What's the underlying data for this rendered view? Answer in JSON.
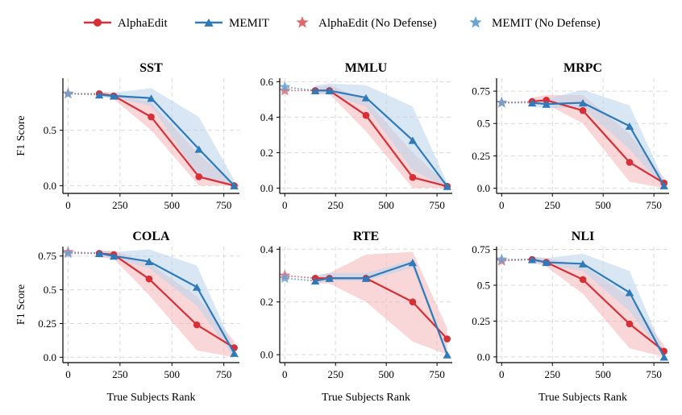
{
  "legend": [
    {
      "label": "AlphaEdit",
      "series": "alpha",
      "kind": "line-circle"
    },
    {
      "label": "MEMIT",
      "series": "memit",
      "kind": "line-triangle"
    },
    {
      "label": "AlphaEdit (No Defense)",
      "series": "alpha",
      "kind": "star"
    },
    {
      "label": "MEMIT (No Defense)",
      "series": "memit",
      "kind": "star"
    }
  ],
  "colors": {
    "alpha": "#d62f36",
    "memit": "#2f7ab8",
    "alpha_band": "#f4b6ba",
    "memit_band": "#b9d3ec",
    "alpha_star": "#e0686d",
    "memit_star": "#6ba3d3"
  },
  "chart_data": [
    {
      "type": "line",
      "title": "SST",
      "ylabel": "F1 Score",
      "xlabel": "",
      "xlim": [
        -25,
        825
      ],
      "ylim": [
        -0.07,
        0.97
      ],
      "xticks": [
        0,
        250,
        500,
        750
      ],
      "yticks": [
        0.0,
        0.5
      ],
      "x": [
        150,
        220,
        400,
        630,
        800
      ],
      "series": [
        {
          "name": "AlphaEdit",
          "values": [
            0.83,
            0.81,
            0.62,
            0.08,
            0.0
          ],
          "band_low": [
            0.81,
            0.78,
            0.5,
            0.0,
            0.0
          ],
          "band_high": [
            0.85,
            0.84,
            0.75,
            0.28,
            0.02
          ]
        },
        {
          "name": "MEMIT",
          "values": [
            0.82,
            0.81,
            0.79,
            0.33,
            0.0
          ],
          "band_low": [
            0.8,
            0.79,
            0.72,
            0.08,
            0.0
          ],
          "band_high": [
            0.84,
            0.84,
            0.88,
            0.62,
            0.05
          ]
        }
      ],
      "no_defense": {
        "x": 0,
        "alpha": 0.83,
        "memit": 0.83
      }
    },
    {
      "type": "line",
      "title": "MMLU",
      "ylabel": "",
      "xlabel": "",
      "xlim": [
        -25,
        825
      ],
      "ylim": [
        -0.03,
        0.62
      ],
      "xticks": [
        0,
        250,
        500,
        750
      ],
      "yticks": [
        0.0,
        0.2,
        0.4,
        0.6
      ],
      "x": [
        150,
        220,
        400,
        630,
        800
      ],
      "series": [
        {
          "name": "AlphaEdit",
          "values": [
            0.55,
            0.55,
            0.41,
            0.06,
            0.01
          ],
          "band_low": [
            0.53,
            0.53,
            0.32,
            0.0,
            0.0
          ],
          "band_high": [
            0.57,
            0.58,
            0.5,
            0.2,
            0.02
          ]
        },
        {
          "name": "MEMIT",
          "values": [
            0.55,
            0.55,
            0.51,
            0.27,
            0.01
          ],
          "band_low": [
            0.53,
            0.53,
            0.46,
            0.1,
            0.0
          ],
          "band_high": [
            0.58,
            0.59,
            0.58,
            0.46,
            0.03
          ]
        }
      ],
      "no_defense": {
        "x": 0,
        "alpha": 0.55,
        "memit": 0.57
      }
    },
    {
      "type": "line",
      "title": "MRPC",
      "ylabel": "",
      "xlabel": "",
      "xlim": [
        -25,
        825
      ],
      "ylim": [
        -0.04,
        0.85
      ],
      "xticks": [
        0,
        250,
        500,
        750
      ],
      "yticks": [
        0.0,
        0.25,
        0.5,
        0.75
      ],
      "x": [
        150,
        220,
        400,
        630,
        800
      ],
      "series": [
        {
          "name": "AlphaEdit",
          "values": [
            0.67,
            0.68,
            0.6,
            0.2,
            0.04
          ],
          "band_low": [
            0.64,
            0.65,
            0.5,
            0.05,
            0.0
          ],
          "band_high": [
            0.7,
            0.72,
            0.72,
            0.42,
            0.08
          ]
        },
        {
          "name": "MEMIT",
          "values": [
            0.66,
            0.65,
            0.66,
            0.48,
            0.02
          ],
          "band_low": [
            0.63,
            0.62,
            0.62,
            0.3,
            0.0
          ],
          "band_high": [
            0.69,
            0.69,
            0.76,
            0.64,
            0.06
          ]
        }
      ],
      "no_defense": {
        "x": 0,
        "alpha": 0.66,
        "memit": 0.66
      }
    },
    {
      "type": "line",
      "title": "COLA",
      "ylabel": "F1 Score",
      "xlabel": "True Subjects Rank",
      "xlim": [
        -25,
        825
      ],
      "ylim": [
        -0.04,
        0.82
      ],
      "xticks": [
        0,
        250,
        500,
        750
      ],
      "yticks": [
        0.0,
        0.25,
        0.5,
        0.75
      ],
      "x": [
        150,
        220,
        390,
        620,
        800
      ],
      "series": [
        {
          "name": "AlphaEdit",
          "values": [
            0.77,
            0.76,
            0.58,
            0.24,
            0.07
          ],
          "band_low": [
            0.74,
            0.73,
            0.46,
            0.05,
            0.0
          ],
          "band_high": [
            0.79,
            0.79,
            0.7,
            0.45,
            0.12
          ]
        },
        {
          "name": "MEMIT",
          "values": [
            0.77,
            0.75,
            0.71,
            0.52,
            0.03
          ],
          "band_low": [
            0.75,
            0.73,
            0.66,
            0.38,
            0.0
          ],
          "band_high": [
            0.79,
            0.78,
            0.8,
            0.68,
            0.06
          ]
        }
      ],
      "no_defense": {
        "x": 0,
        "alpha": 0.78,
        "memit": 0.77
      }
    },
    {
      "type": "line",
      "title": "RTE",
      "ylabel": "",
      "xlabel": "True Subjects Rank",
      "xlim": [
        -25,
        825
      ],
      "ylim": [
        -0.03,
        0.41
      ],
      "xticks": [
        0,
        250,
        500,
        750
      ],
      "yticks": [
        0.0,
        0.2,
        0.4
      ],
      "x": [
        150,
        220,
        400,
        630,
        800
      ],
      "series": [
        {
          "name": "AlphaEdit",
          "values": [
            0.29,
            0.29,
            0.29,
            0.2,
            0.06
          ],
          "band_low": [
            0.27,
            0.27,
            0.2,
            0.05,
            0.0
          ],
          "band_high": [
            0.3,
            0.31,
            0.38,
            0.39,
            0.1
          ]
        },
        {
          "name": "MEMIT",
          "values": [
            0.28,
            0.29,
            0.29,
            0.35,
            0.0
          ],
          "band_low": [
            0.27,
            0.28,
            0.28,
            0.33,
            0.0
          ],
          "band_high": [
            0.3,
            0.31,
            0.31,
            0.36,
            0.02
          ]
        }
      ],
      "no_defense": {
        "x": 0,
        "alpha": 0.3,
        "memit": 0.29
      }
    },
    {
      "type": "line",
      "title": "NLI",
      "ylabel": "",
      "xlabel": "True Subjects Rank",
      "xlim": [
        -25,
        825
      ],
      "ylim": [
        -0.04,
        0.77
      ],
      "xticks": [
        0,
        250,
        500,
        750
      ],
      "yticks": [
        0.0,
        0.25,
        0.5,
        0.75
      ],
      "x": [
        150,
        220,
        400,
        630,
        800
      ],
      "series": [
        {
          "name": "AlphaEdit",
          "values": [
            0.68,
            0.66,
            0.54,
            0.23,
            0.04
          ],
          "band_low": [
            0.66,
            0.63,
            0.44,
            0.06,
            0.0
          ],
          "band_high": [
            0.7,
            0.69,
            0.64,
            0.42,
            0.08
          ]
        },
        {
          "name": "MEMIT",
          "values": [
            0.68,
            0.66,
            0.65,
            0.45,
            0.0
          ],
          "band_low": [
            0.66,
            0.64,
            0.6,
            0.32,
            0.0
          ],
          "band_high": [
            0.7,
            0.69,
            0.72,
            0.6,
            0.03
          ]
        }
      ],
      "no_defense": {
        "x": 0,
        "alpha": 0.67,
        "memit": 0.68
      }
    }
  ]
}
